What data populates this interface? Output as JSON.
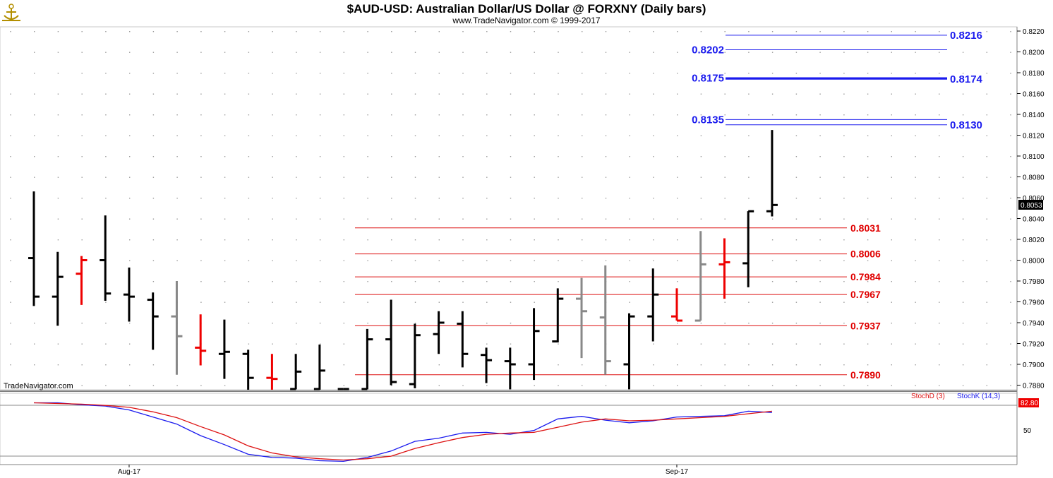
{
  "header": {
    "title": "$AUD-USD:  Australian Dollar/US Dollar @ FORXNY  (Daily bars)",
    "subtitle": "www.TradeNavigator.com © 1999-2017",
    "watermark": "TradeNavigator.com"
  },
  "colors": {
    "bar_black": "#000000",
    "bar_red": "#ee0000",
    "bar_gray": "#888888",
    "level_blue": "#1a1aee",
    "level_red": "#dd1111",
    "stoch_k": "#1a1aee",
    "stoch_d": "#dd1111"
  },
  "chart_data": [
    {
      "type": "ohlc",
      "ylim": [
        0.7875,
        0.823
      ],
      "y_ticks": [
        "0.8220",
        "0.8200",
        "0.8180",
        "0.8160",
        "0.8140",
        "0.8120",
        "0.8100",
        "0.8080",
        "0.8060",
        "0.8040",
        "0.8020",
        "0.8000",
        "0.7980",
        "0.7960",
        "0.7940",
        "0.7920",
        "0.7900",
        "0.7880"
      ],
      "last_price": "0.8053",
      "x_labels": [
        {
          "index": 4,
          "label": "Aug-17"
        },
        {
          "index": 27,
          "label": "Sep-17"
        }
      ],
      "bars": [
        {
          "o": 0.8002,
          "h": 0.8066,
          "l": 0.7956,
          "c": 0.7965,
          "color": "black"
        },
        {
          "o": 0.7965,
          "h": 0.8008,
          "l": 0.7937,
          "c": 0.7984,
          "color": "black"
        },
        {
          "o": 0.7987,
          "h": 0.8004,
          "l": 0.7957,
          "c": 0.8,
          "color": "red"
        },
        {
          "o": 0.8,
          "h": 0.8043,
          "l": 0.7961,
          "c": 0.7968,
          "color": "black"
        },
        {
          "o": 0.7967,
          "h": 0.7993,
          "l": 0.7941,
          "c": 0.7965,
          "color": "black"
        },
        {
          "o": 0.7962,
          "h": 0.7969,
          "l": 0.7914,
          "c": 0.7946,
          "color": "black"
        },
        {
          "o": 0.7946,
          "h": 0.798,
          "l": 0.789,
          "c": 0.7927,
          "color": "gray"
        },
        {
          "o": 0.7916,
          "h": 0.7948,
          "l": 0.7899,
          "c": 0.7913,
          "color": "red"
        },
        {
          "o": 0.791,
          "h": 0.7943,
          "l": 0.7886,
          "c": 0.7912,
          "color": "black"
        },
        {
          "o": 0.791,
          "h": 0.7914,
          "l": 0.7872,
          "c": 0.7887,
          "color": "black"
        },
        {
          "o": 0.7887,
          "h": 0.791,
          "l": 0.7872,
          "c": 0.7886,
          "color": "red"
        },
        {
          "o": 0.7876,
          "h": 0.791,
          "l": 0.7876,
          "c": 0.7893,
          "color": "black"
        },
        {
          "o": 0.7876,
          "h": 0.7919,
          "l": 0.7872,
          "c": 0.7894,
          "color": "black"
        },
        {
          "o": 0.7876,
          "h": 0.7876,
          "l": 0.7872,
          "c": 0.7876,
          "color": "black"
        },
        {
          "o": 0.7876,
          "h": 0.7934,
          "l": 0.7876,
          "c": 0.7924,
          "color": "black"
        },
        {
          "o": 0.7924,
          "h": 0.7962,
          "l": 0.788,
          "c": 0.7883,
          "color": "black"
        },
        {
          "o": 0.7881,
          "h": 0.7939,
          "l": 0.7877,
          "c": 0.7928,
          "color": "black"
        },
        {
          "o": 0.7929,
          "h": 0.7951,
          "l": 0.791,
          "c": 0.794,
          "color": "black"
        },
        {
          "o": 0.7939,
          "h": 0.7951,
          "l": 0.7897,
          "c": 0.791,
          "color": "black"
        },
        {
          "o": 0.7909,
          "h": 0.7916,
          "l": 0.7882,
          "c": 0.7904,
          "color": "black"
        },
        {
          "o": 0.7903,
          "h": 0.7916,
          "l": 0.7876,
          "c": 0.79,
          "color": "black"
        },
        {
          "o": 0.79,
          "h": 0.7954,
          "l": 0.7885,
          "c": 0.7932,
          "color": "black"
        },
        {
          "o": 0.7922,
          "h": 0.7973,
          "l": 0.7921,
          "c": 0.7963,
          "color": "black"
        },
        {
          "o": 0.7963,
          "h": 0.7983,
          "l": 0.7906,
          "c": 0.7951,
          "color": "gray"
        },
        {
          "o": 0.7945,
          "h": 0.7995,
          "l": 0.789,
          "c": 0.7903,
          "color": "gray"
        },
        {
          "o": 0.79,
          "h": 0.7949,
          "l": 0.7876,
          "c": 0.7946,
          "color": "black"
        },
        {
          "o": 0.7946,
          "h": 0.7992,
          "l": 0.7922,
          "c": 0.7967,
          "color": "black"
        },
        {
          "o": 0.7946,
          "h": 0.7973,
          "l": 0.7942,
          "c": 0.7942,
          "color": "red"
        },
        {
          "o": 0.7942,
          "h": 0.8028,
          "l": 0.7942,
          "c": 0.7996,
          "color": "gray"
        },
        {
          "o": 0.7996,
          "h": 0.8021,
          "l": 0.7963,
          "c": 0.7998,
          "color": "red"
        },
        {
          "o": 0.7997,
          "h": 0.8047,
          "l": 0.7974,
          "c": 0.8047,
          "color": "black"
        },
        {
          "o": 0.8047,
          "h": 0.8125,
          "l": 0.8042,
          "c": 0.8053,
          "color": "black"
        }
      ],
      "levels": [
        {
          "value": 0.8216,
          "left_label": "",
          "right_label": "0.8216",
          "color": "blue",
          "from": 29,
          "to": 37
        },
        {
          "value": 0.8202,
          "left_label": "0.8202",
          "right_label": "",
          "color": "blue",
          "from": 29,
          "to": 37
        },
        {
          "value": 0.8175,
          "left_label": "0.8175",
          "right_label": "",
          "color": "blue",
          "from": 29,
          "to": 37
        },
        {
          "value": 0.8174,
          "left_label": "",
          "right_label": "0.8174",
          "color": "blue",
          "from": 29,
          "to": 37
        },
        {
          "value": 0.8135,
          "left_label": "0.8135",
          "right_label": "",
          "color": "blue",
          "from": 29,
          "to": 37
        },
        {
          "value": 0.813,
          "left_label": "",
          "right_label": "0.8130",
          "color": "blue",
          "from": 29,
          "to": 37
        },
        {
          "value": 0.8031,
          "left_label": "",
          "right_label": "0.8031",
          "color": "red",
          "from": 14,
          "to": 33
        },
        {
          "value": 0.8006,
          "left_label": "",
          "right_label": "0.8006",
          "color": "red",
          "from": 14,
          "to": 33
        },
        {
          "value": 0.7984,
          "left_label": "",
          "right_label": "0.7984",
          "color": "red",
          "from": 14,
          "to": 33
        },
        {
          "value": 0.7967,
          "left_label": "",
          "right_label": "0.7967",
          "color": "red",
          "from": 14,
          "to": 33
        },
        {
          "value": 0.7937,
          "left_label": "",
          "right_label": "0.7937",
          "color": "red",
          "from": 14,
          "to": 33
        },
        {
          "value": 0.789,
          "left_label": "",
          "right_label": "0.7890",
          "color": "red",
          "from": 14,
          "to": 33
        }
      ]
    },
    {
      "type": "line",
      "ylim": [
        0,
        100
      ],
      "y_ticks": [
        "50"
      ],
      "last_value": "82.80",
      "legend": [
        {
          "name": "StochD (3)",
          "color": "red"
        },
        {
          "name": "StochK (14,3)",
          "color": "blue"
        }
      ],
      "series": [
        {
          "name": "StochK (14,3)",
          "values": [
            95,
            95,
            92,
            90,
            84,
            73,
            62,
            44,
            30,
            15,
            10,
            9,
            5,
            4,
            10,
            20,
            35,
            40,
            48,
            49,
            46,
            52,
            70,
            74,
            68,
            64,
            67,
            73,
            74,
            75,
            82,
            80
          ]
        },
        {
          "name": "StochD (3)",
          "values": [
            95,
            94,
            93,
            91,
            88,
            81,
            72,
            58,
            45,
            28,
            17,
            11,
            8,
            6,
            8,
            12,
            24,
            33,
            41,
            46,
            48,
            49,
            57,
            65,
            70,
            67,
            68,
            70,
            72,
            74,
            78,
            82
          ]
        }
      ]
    }
  ]
}
